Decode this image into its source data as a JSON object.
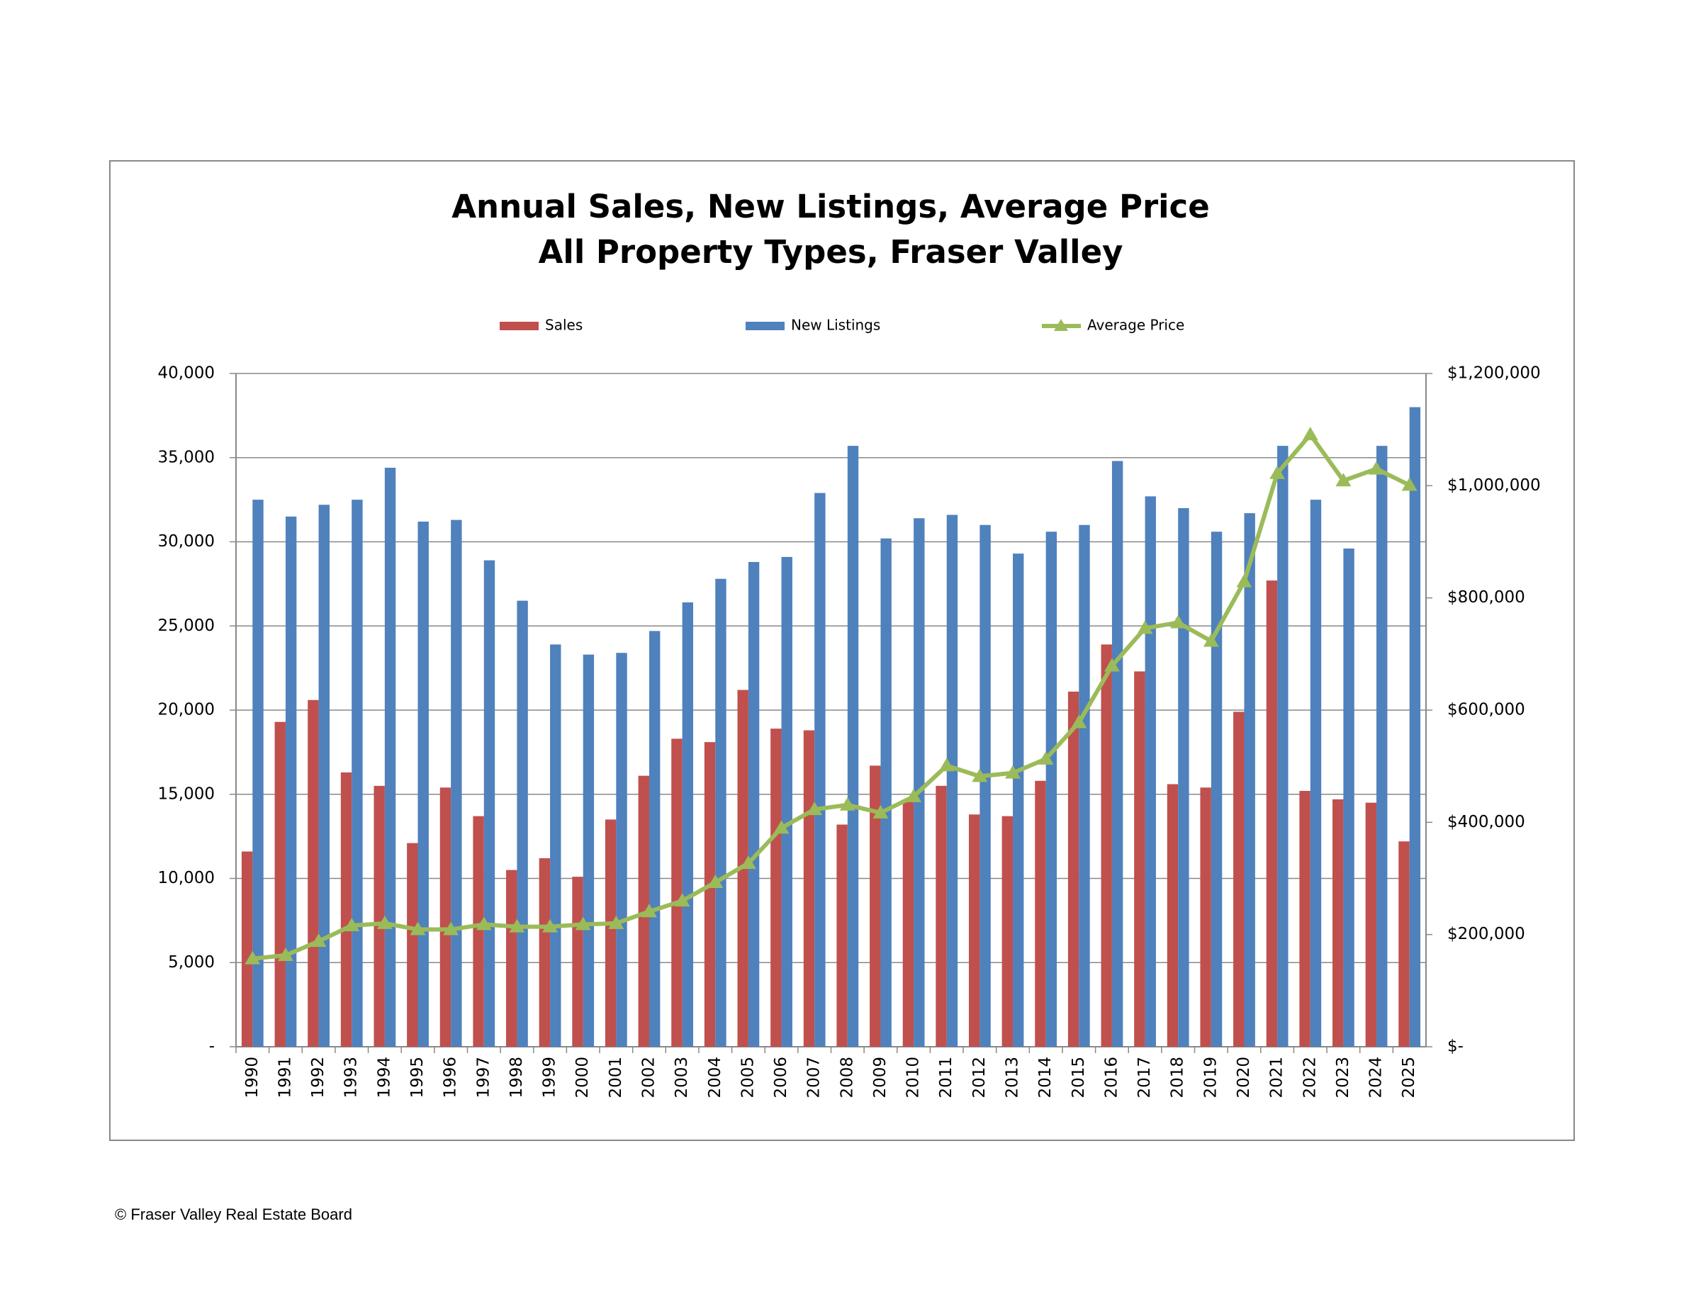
{
  "chart_data": {
    "type": "bar",
    "title": "Annual Sales, New Listings, Average Price",
    "subtitle": "All Property Types, Fraser Valley",
    "categories": [
      "1990",
      "1991",
      "1992",
      "1993",
      "1994",
      "1995",
      "1996",
      "1997",
      "1998",
      "1999",
      "2000",
      "2001",
      "2002",
      "2003",
      "2004",
      "2005",
      "2006",
      "2007",
      "2008",
      "2009",
      "2010",
      "2011",
      "2012",
      "2013",
      "2014",
      "2015",
      "2016",
      "2017",
      "2018",
      "2019",
      "2020",
      "2021",
      "2022",
      "2023",
      "2024",
      "2025"
    ],
    "series": [
      {
        "name": "Sales",
        "color": "#c0504d",
        "values": [
          11600,
          19300,
          20600,
          16300,
          15500,
          12100,
          15400,
          13700,
          10500,
          11200,
          10100,
          13500,
          16100,
          18300,
          18100,
          21200,
          18900,
          18800,
          13200,
          16700,
          14700,
          15500,
          13800,
          13700,
          15800,
          21100,
          23900,
          22300,
          15600,
          15400,
          19900,
          27700,
          15200,
          14700,
          14500,
          12200
        ]
      },
      {
        "name": "New Listings",
        "color": "#4f81bd",
        "values": [
          32500,
          31500,
          32200,
          32500,
          34400,
          31200,
          31300,
          28900,
          26500,
          23900,
          23300,
          23400,
          24700,
          26400,
          27800,
          28800,
          29100,
          32900,
          35700,
          30200,
          31400,
          31600,
          31000,
          29300,
          30600,
          31000,
          34800,
          32700,
          32000,
          30600,
          31700,
          35700,
          32500,
          29600,
          35700,
          38000
        ]
      },
      {
        "name": "Average Price",
        "color": "#9bbb59",
        "axis": "y2",
        "values": [
          157000,
          163000,
          188000,
          216000,
          220000,
          209000,
          209000,
          218000,
          214000,
          214000,
          218000,
          220000,
          241000,
          260000,
          293000,
          327000,
          390000,
          423000,
          431000,
          417000,
          446000,
          501000,
          482000,
          488000,
          513000,
          578000,
          679000,
          746000,
          756000,
          723000,
          829000,
          1022000,
          1091000,
          1009000,
          1030000,
          1001000
        ]
      }
    ],
    "ylim": [
      0,
      40000
    ],
    "yticks": [
      {
        "value": 0,
        "label": "-"
      },
      {
        "value": 5000,
        "label": "5,000"
      },
      {
        "value": 10000,
        "label": "10,000"
      },
      {
        "value": 15000,
        "label": "15,000"
      },
      {
        "value": 20000,
        "label": "20,000"
      },
      {
        "value": 25000,
        "label": "25,000"
      },
      {
        "value": 30000,
        "label": "30,000"
      },
      {
        "value": 35000,
        "label": "35,000"
      },
      {
        "value": 40000,
        "label": "40,000"
      }
    ],
    "y2lim": [
      0,
      1200000
    ],
    "y2ticks": [
      {
        "value": 0,
        "label": "$-"
      },
      {
        "value": 200000,
        "label": "$200,000"
      },
      {
        "value": 400000,
        "label": "$400,000"
      },
      {
        "value": 600000,
        "label": "$600,000"
      },
      {
        "value": 800000,
        "label": "$800,000"
      },
      {
        "value": 1000000,
        "label": "$1,000,000"
      },
      {
        "value": 1200000,
        "label": "$1,200,000"
      }
    ],
    "grid": true,
    "legend": "top"
  },
  "footer": "© Fraser Valley Real Estate Board"
}
